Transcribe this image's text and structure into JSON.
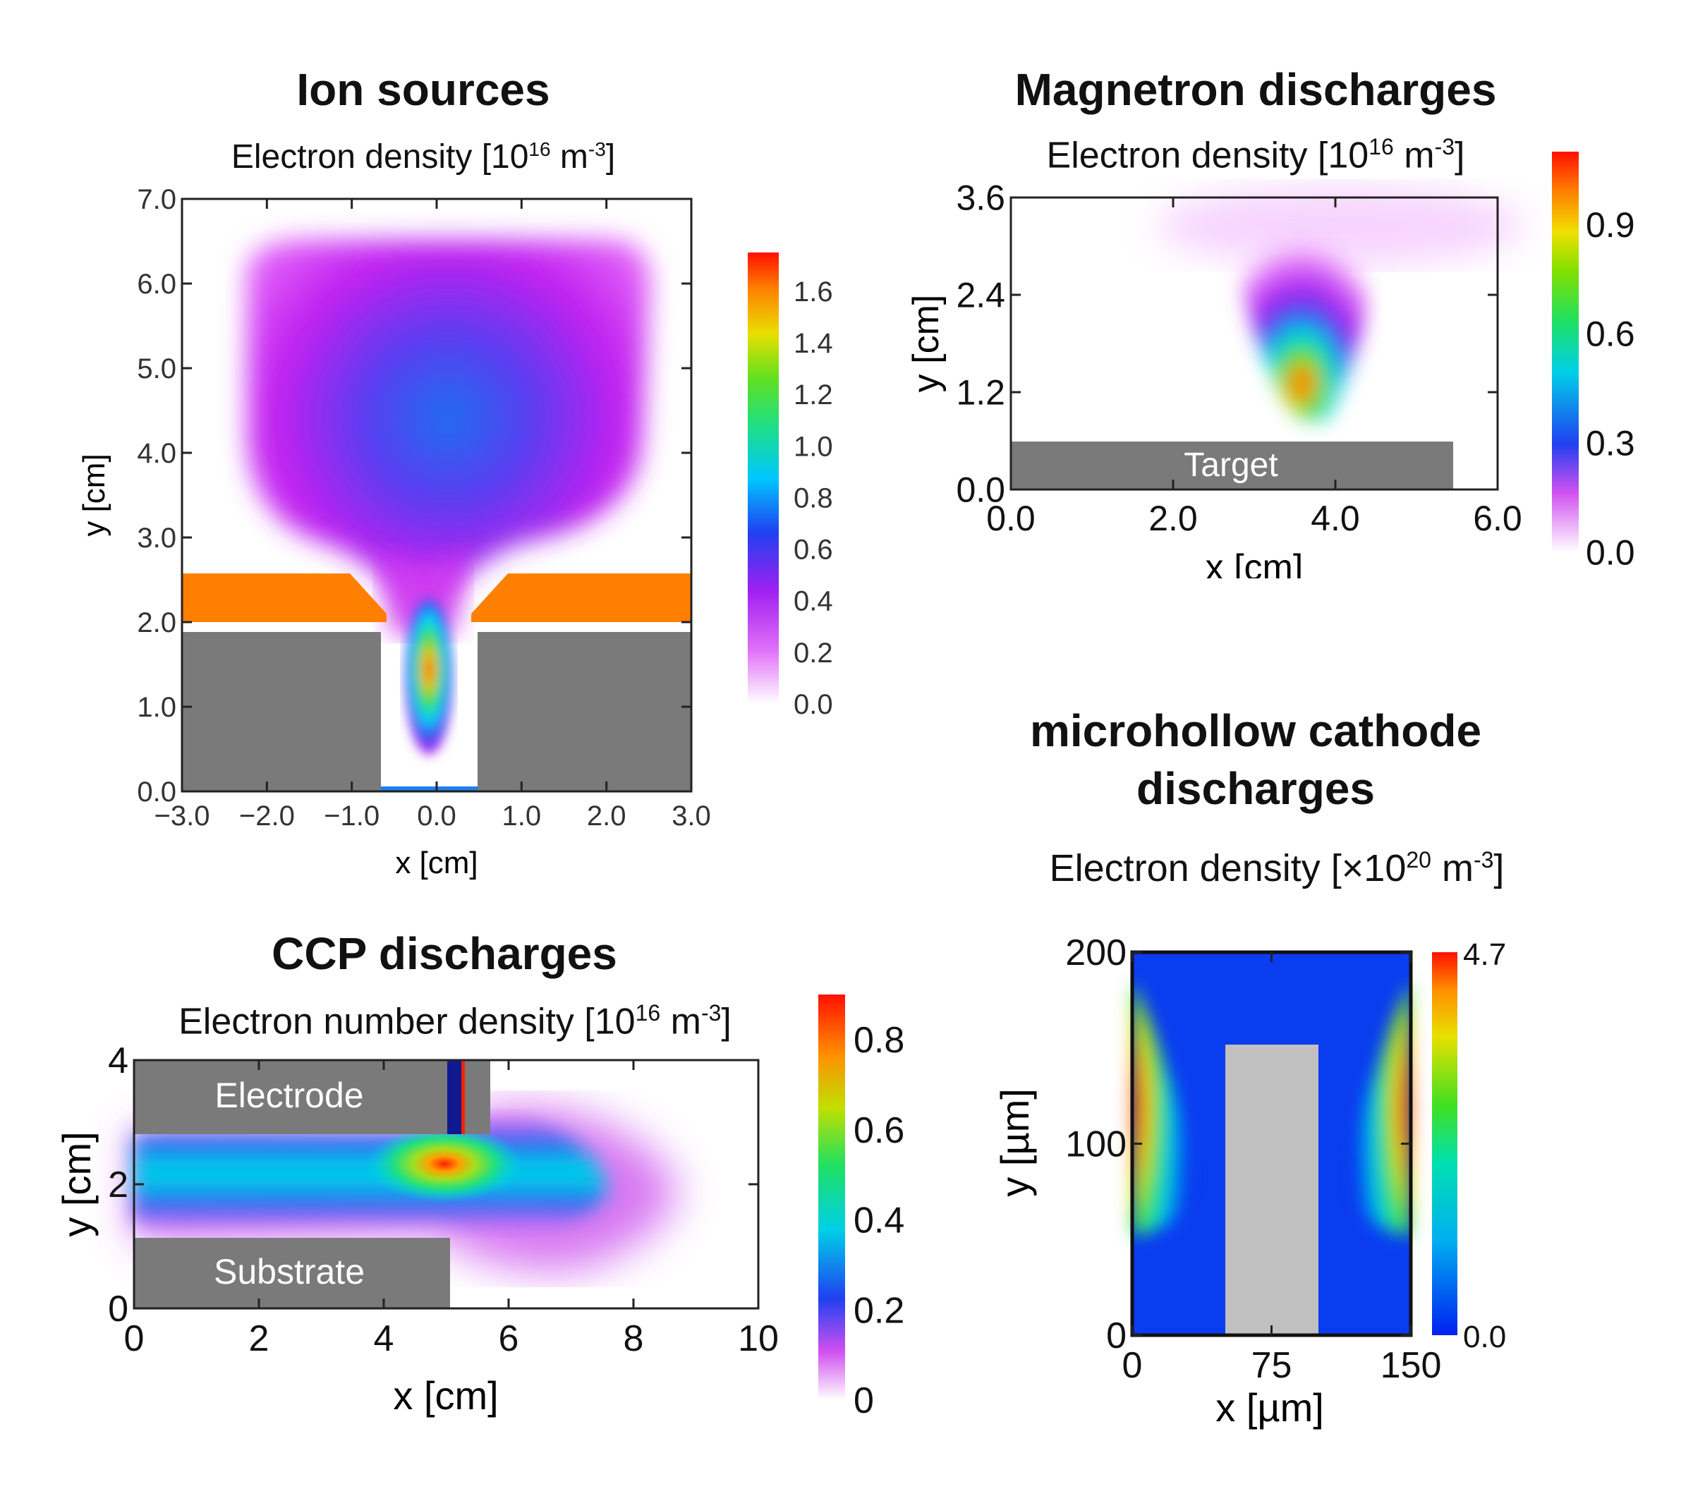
{
  "chart_data": [
    {
      "type": "heatmap",
      "title": "Ion sources",
      "subtitle": "Electron density [10",
      "subtitle_exp": "16",
      "subtitle_tail": " m",
      "subtitle_exp2": "-3",
      "subtitle_end": "]",
      "xlabel": "x [cm]",
      "ylabel": "y [cm]",
      "xlim": [
        -3.0,
        3.0
      ],
      "ylim": [
        0.0,
        7.0
      ],
      "xticks": [
        "-3.0",
        "-2.0",
        "-1.0",
        "0.0",
        "1.0",
        "2.0",
        "3.0"
      ],
      "yticks": [
        "0.0",
        "1.0",
        "2.0",
        "3.0",
        "4.0",
        "5.0",
        "6.0",
        "7.0"
      ],
      "colorbar": {
        "range": [
          0.0,
          1.75
        ],
        "ticks": [
          "0.0",
          "0.2",
          "0.4",
          "0.6",
          "0.8",
          "1.0",
          "1.2",
          "1.4",
          "1.6"
        ]
      },
      "peak": {
        "x": 0.0,
        "y": 1.6,
        "value": 1.7
      },
      "grid": false
    },
    {
      "type": "heatmap",
      "title": "Magnetron discharges",
      "subtitle": "Electron density [10",
      "subtitle_exp": "16",
      "subtitle_tail": " m",
      "subtitle_exp2": "-3",
      "subtitle_end": "]",
      "xlabel": "x [cm]",
      "ylabel": "y [cm]",
      "xlim": [
        0.0,
        6.0
      ],
      "ylim": [
        0.0,
        3.6
      ],
      "xticks": [
        "0.0",
        "2.0",
        "4.0",
        "6.0"
      ],
      "yticks": [
        "0.0",
        "1.2",
        "2.4",
        "3.6"
      ],
      "colorbar": {
        "range": [
          0.0,
          1.1
        ],
        "ticks": [
          "0.0",
          "0.3",
          "0.6",
          "0.9"
        ]
      },
      "annotation": "Target",
      "peak": {
        "x": 2.9,
        "y": 1.1,
        "value": 1.1
      },
      "grid": false
    },
    {
      "type": "heatmap",
      "title": "CCP discharges",
      "subtitle": "Electron number density [10",
      "subtitle_exp": "16",
      "subtitle_tail": " m",
      "subtitle_exp2": "-3",
      "subtitle_end": "]",
      "xlabel": "x [cm]",
      "ylabel": "y [cm]",
      "xlim": [
        0,
        10
      ],
      "ylim": [
        0,
        4
      ],
      "xticks": [
        "0",
        "2",
        "4",
        "6",
        "8",
        "10"
      ],
      "yticks": [
        "0",
        "2",
        "4"
      ],
      "colorbar": {
        "range": [
          0,
          0.9
        ],
        "ticks": [
          "0",
          "0.2",
          "0.4",
          "0.6",
          "0.8"
        ]
      },
      "annotations": [
        "Electrode",
        "Substrate"
      ],
      "peak": {
        "x": 5.0,
        "y": 2.4,
        "value": 0.85
      },
      "grid": false
    },
    {
      "type": "heatmap",
      "title_lines": [
        "microhollow cathode",
        "discharges"
      ],
      "subtitle": "Electron density [×10",
      "subtitle_exp": "20",
      "subtitle_tail": " m",
      "subtitle_exp2": "-3",
      "subtitle_end": "]",
      "xlabel": "x [µm]",
      "ylabel": "y [µm]",
      "xlim": [
        0,
        150
      ],
      "ylim": [
        0,
        200
      ],
      "xticks": [
        "0",
        "75",
        "150"
      ],
      "yticks": [
        "0",
        "100",
        "200"
      ],
      "colorbar": {
        "range": [
          0.0,
          4.7
        ],
        "ticks": [
          "0.0",
          "4.7"
        ]
      },
      "grid": false
    }
  ],
  "colors": {
    "electrode_orange": "#ff8000",
    "wall_gray": "#7a7a7a",
    "insert_gray": "#c0c0c0",
    "background_blue": "#0a3cf0"
  }
}
